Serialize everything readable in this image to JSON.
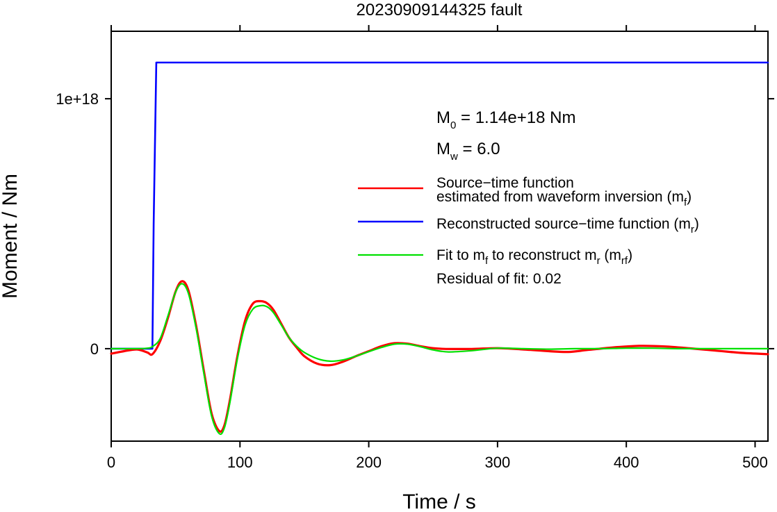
{
  "chart_data": {
    "type": "line",
    "title": "20230909144325 fault",
    "xlabel": "Time / s",
    "ylabel": "Moment / Nm",
    "xlim": [
      0,
      510
    ],
    "ylim": [
      -3.7e+17,
      1.27e+18
    ],
    "x_ticks": [
      0,
      100,
      200,
      300,
      400,
      500
    ],
    "x_tick_labels": [
      "0",
      "100",
      "200",
      "300",
      "400",
      "500"
    ],
    "y_ticks": [
      0,
      1e+18
    ],
    "y_tick_labels": [
      "0",
      "1e+18"
    ],
    "grid": false,
    "legend_position": "right",
    "annotations": {
      "m0": {
        "prefix": "M",
        "sub": "0",
        "suffix": " = 1.14e+18 Nm"
      },
      "mw": {
        "prefix": "M",
        "sub": "w",
        "suffix": " = 6.0"
      },
      "residual": "Residual of fit: 0.02"
    },
    "legend": [
      {
        "color": "#ff0000",
        "lines": [
          [
            {
              "t": "Source−time function"
            }
          ],
          [
            {
              "t": "estimated from waveform inversion (m"
            },
            {
              "t": "f",
              "sub": true
            },
            {
              "t": ")"
            }
          ]
        ]
      },
      {
        "color": "#0000ff",
        "lines": [
          [
            {
              "t": "Reconstructed source−time function (m"
            },
            {
              "t": "r",
              "sub": true
            },
            {
              "t": ")"
            }
          ]
        ]
      },
      {
        "color": "#00e000",
        "lines": [
          [
            {
              "t": "Fit to m"
            },
            {
              "t": "f",
              "sub": true
            },
            {
              "t": " to reconstruct m"
            },
            {
              "t": "r",
              "sub": true
            },
            {
              "t": " (m"
            },
            {
              "t": "rf",
              "sub": true
            },
            {
              "t": ")"
            }
          ]
        ]
      }
    ],
    "series": [
      {
        "color": "#ff0000",
        "width": 3.2,
        "x": [
          0,
          10,
          20,
          28,
          32,
          38,
          44,
          50,
          55,
          60,
          66,
          72,
          78,
          84,
          88,
          92,
          98,
          104,
          110,
          116,
          121,
          126,
          132,
          138,
          144,
          150,
          160,
          170,
          180,
          190,
          200,
          210,
          220,
          230,
          240,
          250,
          260,
          280,
          300,
          320,
          340,
          355,
          370,
          390,
          410,
          430,
          450,
          470,
          490,
          510
        ],
        "y": [
          -2e+16,
          -1e+16,
          -3000000000000000.0,
          -1.5e+16,
          -2.2e+16,
          3e+16,
          1.22e+17,
          2.28e+17,
          2.7e+17,
          2.32e+17,
          9e+16,
          -9e+16,
          -2.6e+17,
          -3.3e+17,
          -3.05e+17,
          -2.1e+17,
          -3e+16,
          1.12e+17,
          1.8e+17,
          1.9e+17,
          1.82e+17,
          1.55e+17,
          1e+17,
          4.5e+16,
          5000000000000000.0,
          -3e+16,
          -6e+16,
          -6.6e+16,
          -5.2e+16,
          -3e+16,
          -1e+16,
          1e+16,
          2.2e+16,
          2e+16,
          1e+16,
          2000000000000000.0,
          -1000000000000000.0,
          -1000000000000000.0,
          2000000000000000.0,
          -3000000000000000.0,
          -1e+16,
          -1.3e+16,
          -5000000000000000.0,
          5000000000000000.0,
          1.1e+16,
          9000000000000000.0,
          1000000000000000.0,
          -8000000000000000.0,
          -1.7e+16,
          -2.2e+16
        ]
      },
      {
        "color": "#0000ff",
        "width": 2.6,
        "x": [
          0,
          32,
          33,
          35,
          510
        ],
        "y": [
          0,
          0,
          5e+17,
          1.145e+18,
          1.145e+18
        ]
      },
      {
        "color": "#00e000",
        "width": 2.2,
        "x": [
          0,
          20,
          28,
          32,
          38,
          44,
          50,
          55,
          60,
          66,
          72,
          78,
          84,
          88,
          92,
          98,
          104,
          110,
          116,
          121,
          126,
          132,
          138,
          144,
          150,
          160,
          170,
          180,
          190,
          200,
          210,
          220,
          230,
          240,
          250,
          262,
          280,
          300,
          320,
          340,
          360,
          380,
          400,
          420,
          440,
          460,
          480,
          510
        ],
        "y": [
          0,
          0,
          2000000000000000.0,
          8000000000000000.0,
          4e+16,
          1.3e+17,
          2.26e+17,
          2.6e+17,
          2.2e+17,
          8e+16,
          -1e+17,
          -2.7e+17,
          -3.4e+17,
          -3.15e+17,
          -2.2e+17,
          -4e+16,
          9.5e+16,
          1.58e+17,
          1.72e+17,
          1.68e+17,
          1.44e+17,
          9.5e+16,
          4.5e+16,
          1e+16,
          -1.5e+16,
          -4e+16,
          -5e+16,
          -4.5e+16,
          -3e+16,
          -1.2e+16,
          5000000000000000.0,
          1.8e+16,
          1.8e+16,
          8000000000000000.0,
          -5000000000000000.0,
          -1.3e+16,
          -8000000000000000.0,
          2000000000000000.0,
          0,
          -2000000000000000.0,
          0,
          0,
          2000000000000000.0,
          2000000000000000.0,
          0,
          0,
          0,
          0
        ]
      }
    ]
  }
}
